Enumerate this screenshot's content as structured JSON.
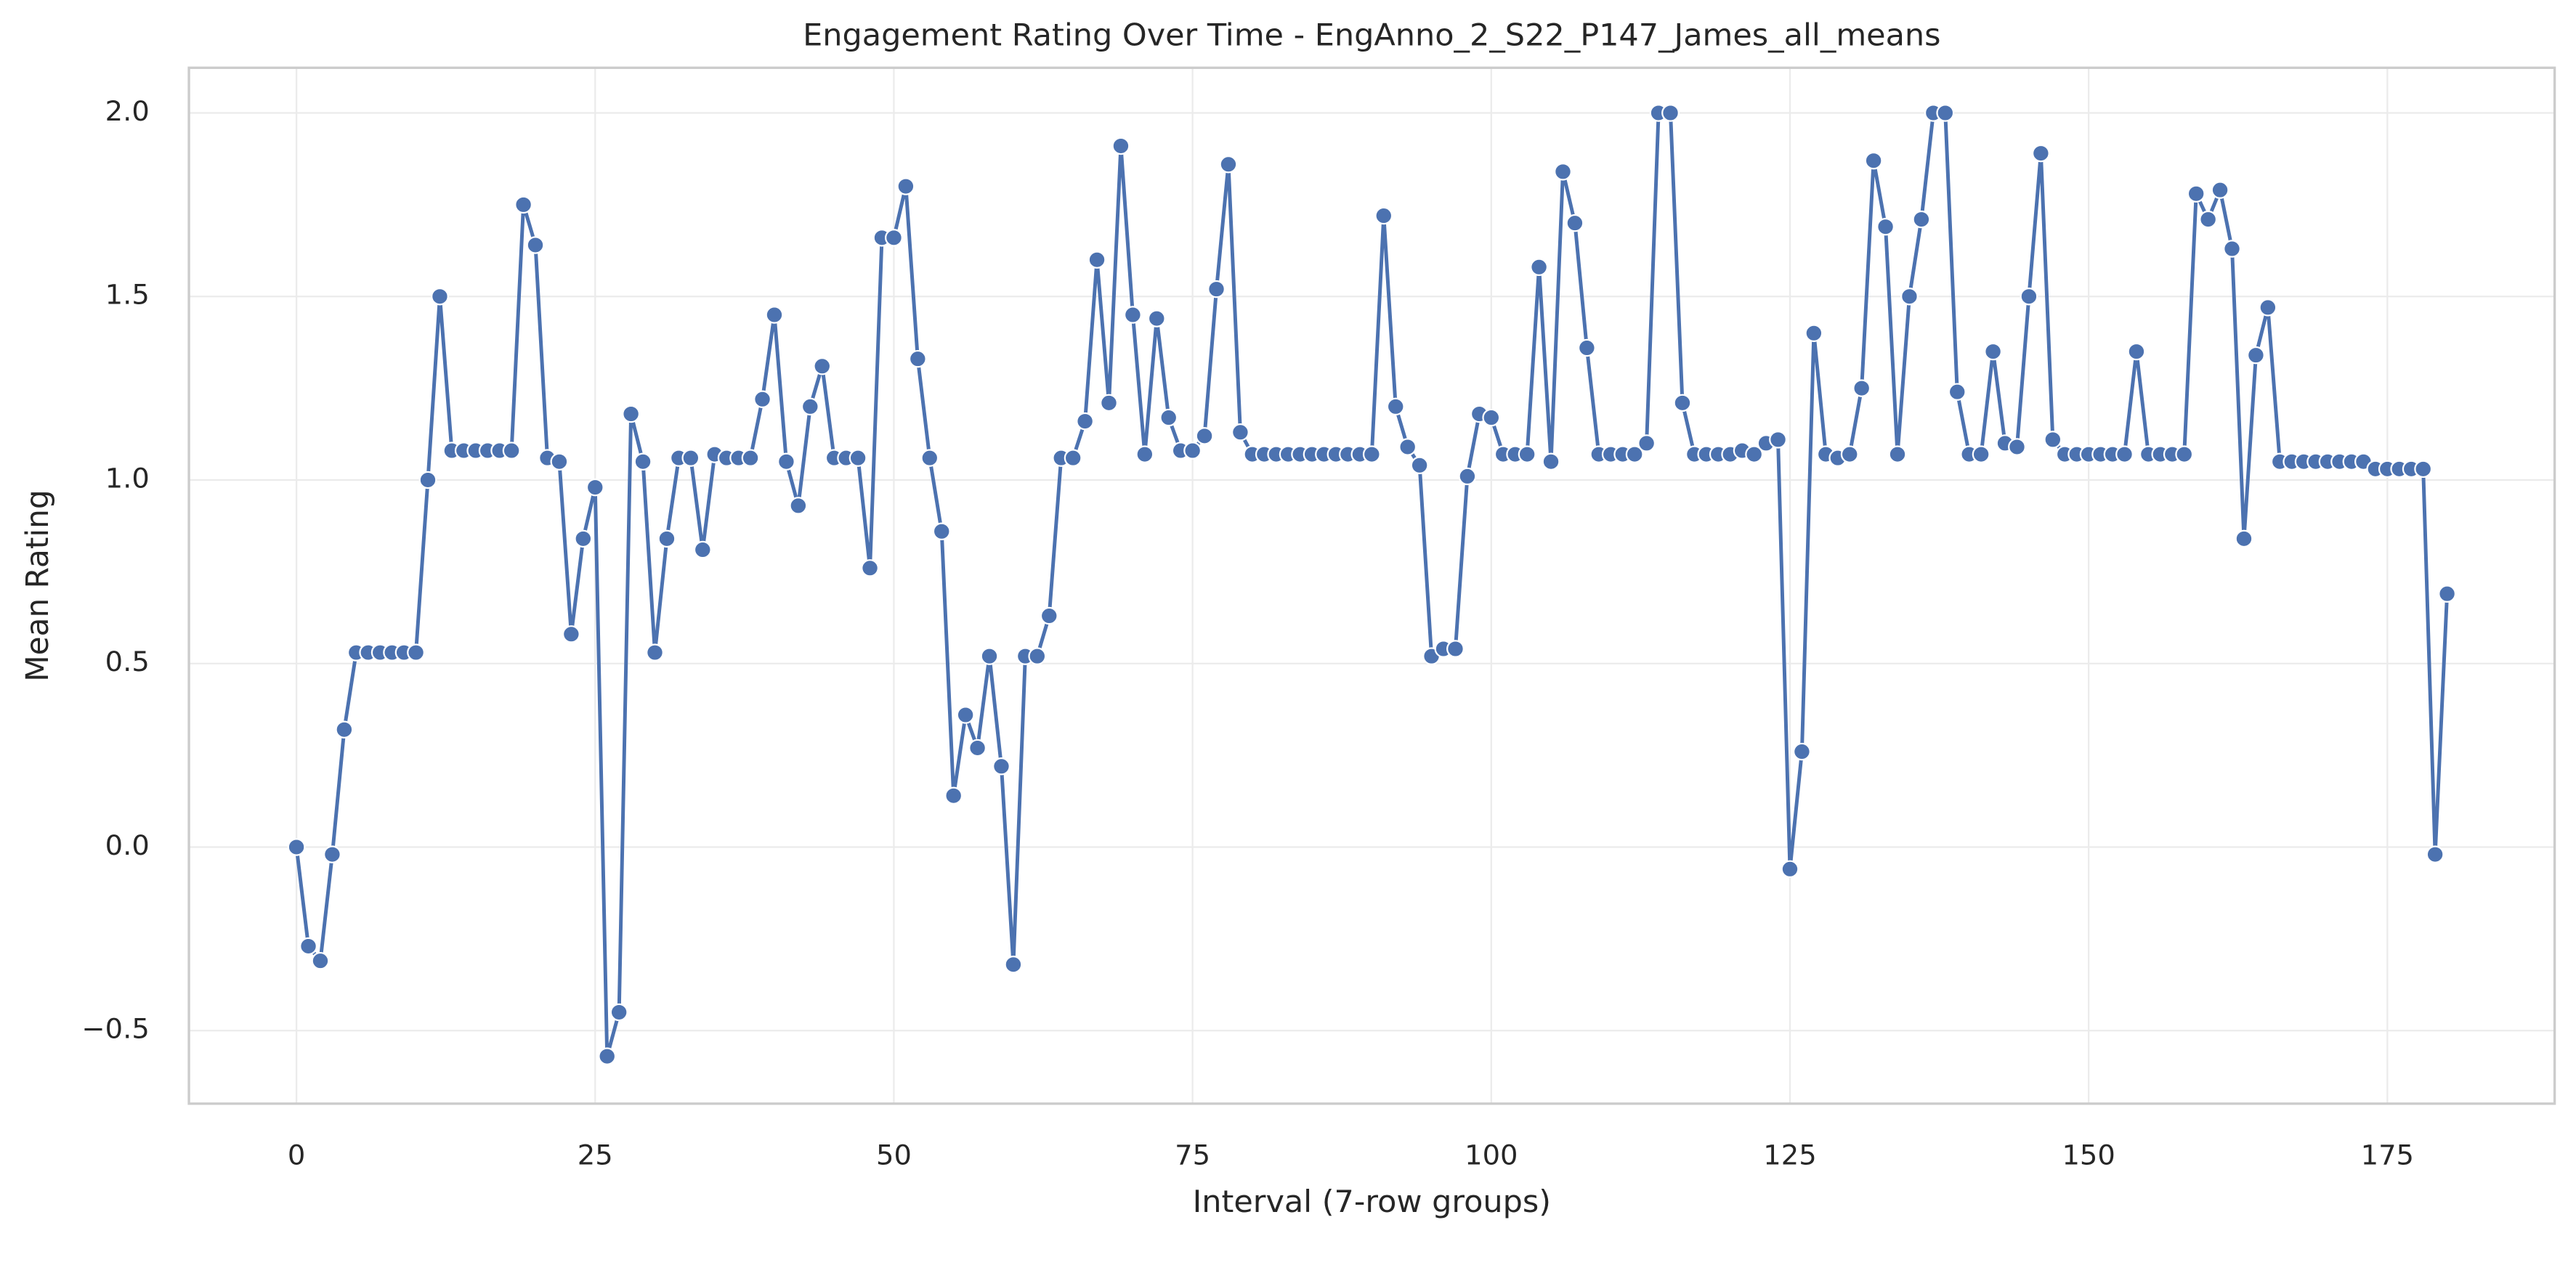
{
  "chart_data": {
    "type": "line",
    "title": "Engagement Rating Over Time - EngAnno_2_S22_P147_James_all_means",
    "xlabel": "Interval (7-row groups)",
    "ylabel": "Mean Rating",
    "x": [
      0,
      1,
      2,
      3,
      4,
      5,
      6,
      7,
      8,
      9,
      10,
      11,
      12,
      13,
      14,
      15,
      16,
      17,
      18,
      19,
      20,
      21,
      22,
      23,
      24,
      25,
      26,
      27,
      28,
      29,
      30,
      31,
      32,
      33,
      34,
      35,
      36,
      37,
      38,
      39,
      40,
      41,
      42,
      43,
      44,
      45,
      46,
      47,
      48,
      49,
      50,
      51,
      52,
      53,
      54,
      55,
      56,
      57,
      58,
      59,
      60,
      61,
      62,
      63,
      64,
      65,
      66,
      67,
      68,
      69,
      70,
      71,
      72,
      73,
      74,
      75,
      76,
      77,
      78,
      79,
      80,
      81,
      82,
      83,
      84,
      85,
      86,
      87,
      88,
      89,
      90,
      91,
      92,
      93,
      94,
      95,
      96,
      97,
      98,
      99,
      100,
      101,
      102,
      103,
      104,
      105,
      106,
      107,
      108,
      109,
      110,
      111,
      112,
      113,
      114,
      115,
      116,
      117,
      118,
      119,
      120,
      121,
      122,
      123,
      124,
      125,
      126,
      127,
      128,
      129,
      130,
      131,
      132,
      133,
      134,
      135,
      136,
      137,
      138,
      139,
      140,
      141,
      142,
      143,
      144,
      145,
      146,
      147,
      148,
      149,
      150,
      151,
      152,
      153,
      154,
      155,
      156,
      157,
      158,
      159,
      160,
      161,
      162,
      163,
      164,
      165,
      166,
      167,
      168,
      169,
      170,
      171,
      172,
      173,
      174,
      175,
      176,
      177,
      178,
      179,
      180
    ],
    "series": [
      {
        "name": "Mean Rating",
        "color": "#4c72b0",
        "values": [
          0,
          -0.27,
          -0.31,
          -0.02,
          0.32,
          0.53,
          0.53,
          0.53,
          0.53,
          0.53,
          0.53,
          1.0,
          1.5,
          1.08,
          1.08,
          1.08,
          1.08,
          1.08,
          1.08,
          1.75,
          1.64,
          1.06,
          1.05,
          0.58,
          0.84,
          0.98,
          -0.57,
          -0.45,
          1.18,
          1.05,
          0.53,
          0.84,
          1.06,
          1.06,
          0.81,
          1.07,
          1.06,
          1.06,
          1.06,
          1.22,
          1.45,
          1.05,
          0.93,
          1.2,
          1.31,
          1.06,
          1.06,
          1.06,
          0.76,
          1.66,
          1.66,
          1.8,
          1.33,
          1.06,
          0.86,
          0.14,
          0.36,
          0.27,
          0.52,
          0.22,
          -0.32,
          0.52,
          0.52,
          0.63,
          1.06,
          1.06,
          1.16,
          1.6,
          1.21,
          1.91,
          1.45,
          1.07,
          1.44,
          1.17,
          1.08,
          1.08,
          1.12,
          1.52,
          1.86,
          1.13,
          1.07,
          1.07,
          1.07,
          1.07,
          1.07,
          1.07,
          1.07,
          1.07,
          1.07,
          1.07,
          1.07,
          1.72,
          1.2,
          1.09,
          1.04,
          0.52,
          0.54,
          0.54,
          1.01,
          1.18,
          1.17,
          1.07,
          1.07,
          1.07,
          1.58,
          1.05,
          1.84,
          1.7,
          1.36,
          1.07,
          1.07,
          1.07,
          1.07,
          1.1,
          2.0,
          2.0,
          1.21,
          1.07,
          1.07,
          1.07,
          1.07,
          1.08,
          1.07,
          1.1,
          1.11,
          -0.06,
          0.26,
          1.4,
          1.07,
          1.06,
          1.07,
          1.25,
          1.87,
          1.69,
          1.07,
          1.5,
          1.71,
          2.0,
          2.0,
          1.24,
          1.07,
          1.07,
          1.35,
          1.1,
          1.09,
          1.5,
          1.89,
          1.11,
          1.07,
          1.07,
          1.07,
          1.07,
          1.07,
          1.07,
          1.35,
          1.07,
          1.07,
          1.07,
          1.07,
          1.78,
          1.71,
          1.79,
          1.63,
          0.84,
          1.34,
          1.47,
          1.05,
          1.05,
          1.05,
          1.05,
          1.05,
          1.05,
          1.05,
          1.05,
          1.03,
          1.03,
          1.03,
          1.03,
          1.03,
          -0.02,
          0.69
        ]
      }
    ],
    "xlim": [
      -9,
      189
    ],
    "xticks": [
      0,
      25,
      50,
      75,
      100,
      125,
      150,
      175
    ],
    "ylim": [
      -0.699,
      2.123
    ],
    "yticks": [
      {
        "value": -0.5,
        "label": "−0.5"
      },
      {
        "value": 0,
        "label": "0.0"
      },
      {
        "value": 0.5,
        "label": "0.5"
      },
      {
        "value": 1,
        "label": "1.0"
      },
      {
        "value": 1.5,
        "label": "1.5"
      },
      {
        "value": 2,
        "label": "2.0"
      }
    ],
    "grid": true
  }
}
